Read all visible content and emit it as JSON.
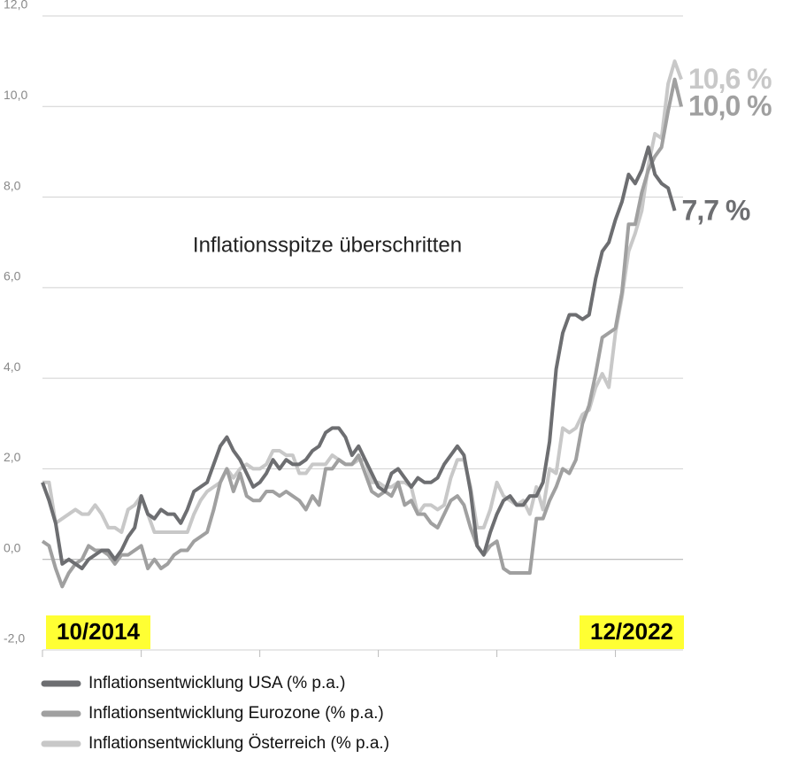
{
  "chart_data": {
    "type": "line",
    "annotation": "Inflationsspitze überschritten",
    "categories": [
      "10/2014",
      null,
      null,
      null,
      null,
      null,
      null,
      null,
      null,
      null,
      null,
      null,
      null,
      null,
      null,
      null,
      null,
      null,
      null,
      null,
      null,
      null,
      null,
      null,
      null,
      null,
      null,
      null,
      null,
      null,
      null,
      null,
      null,
      null,
      null,
      null,
      null,
      null,
      null,
      null,
      null,
      null,
      null,
      null,
      null,
      null,
      null,
      null,
      null,
      null,
      null,
      null,
      null,
      null,
      null,
      null,
      null,
      null,
      null,
      null,
      null,
      null,
      null,
      null,
      null,
      null,
      null,
      null,
      null,
      null,
      null,
      null,
      null,
      null,
      null,
      null,
      null,
      null,
      null,
      null,
      null,
      null,
      null,
      null,
      null,
      null,
      null,
      null,
      null,
      null,
      null,
      null,
      null,
      null,
      null,
      null,
      null,
      "12/2022"
    ],
    "series": [
      {
        "name": "Inflationsentwicklung USA (% p.a.)",
        "color": "#6d6e71",
        "values": [
          1.7,
          1.3,
          0.8,
          -0.1,
          0.0,
          -0.1,
          -0.2,
          0.0,
          0.1,
          0.2,
          0.2,
          0.0,
          0.2,
          0.5,
          0.7,
          1.4,
          1.0,
          0.9,
          1.1,
          1.0,
          1.0,
          0.8,
          1.1,
          1.5,
          1.6,
          1.7,
          2.1,
          2.5,
          2.7,
          2.4,
          2.2,
          1.9,
          1.6,
          1.7,
          1.9,
          2.2,
          2.0,
          2.2,
          2.1,
          2.1,
          2.2,
          2.4,
          2.5,
          2.8,
          2.9,
          2.9,
          2.7,
          2.3,
          2.5,
          2.2,
          1.9,
          1.6,
          1.5,
          1.9,
          2.0,
          1.8,
          1.6,
          1.8,
          1.7,
          1.7,
          1.8,
          2.1,
          2.3,
          2.5,
          2.3,
          1.5,
          0.3,
          0.1,
          0.6,
          1.0,
          1.3,
          1.4,
          1.2,
          1.2,
          1.4,
          1.4,
          1.7,
          2.6,
          4.2,
          5.0,
          5.4,
          5.4,
          5.3,
          5.4,
          6.2,
          6.8,
          7.0,
          7.5,
          7.9,
          8.5,
          8.3,
          8.6,
          9.1,
          8.5,
          8.3,
          8.2,
          7.7,
          null
        ],
        "value_labels": [
          null,
          null,
          null,
          null,
          null,
          null,
          null,
          null,
          null,
          null,
          null,
          null,
          null,
          null,
          null,
          null,
          null,
          null,
          null,
          null,
          null,
          null,
          null,
          null,
          null,
          null,
          null,
          null,
          null,
          null,
          null,
          null,
          null,
          null,
          null,
          null,
          null,
          null,
          null,
          null,
          null,
          null,
          null,
          null,
          null,
          null,
          null,
          null,
          null,
          null,
          null,
          null,
          null,
          null,
          null,
          null,
          null,
          null,
          null,
          null,
          null,
          null,
          null,
          null,
          null,
          null,
          null,
          null,
          null,
          null,
          null,
          null,
          null,
          null,
          null,
          null,
          null,
          null,
          null,
          null,
          null,
          null,
          null,
          null,
          null,
          null,
          null,
          null,
          null,
          null,
          null,
          null,
          null,
          null,
          null,
          null,
          "7,7 %",
          null
        ]
      },
      {
        "name": "Inflationsentwicklung Eurozone (% p.a.)",
        "color": "#a0a0a0",
        "values": [
          0.4,
          0.3,
          -0.2,
          -0.6,
          -0.3,
          -0.1,
          0.0,
          0.3,
          0.2,
          0.2,
          0.1,
          -0.1,
          0.1,
          0.1,
          0.2,
          0.3,
          -0.2,
          0.0,
          -0.2,
          -0.1,
          0.1,
          0.2,
          0.2,
          0.4,
          0.5,
          0.6,
          1.1,
          1.7,
          2.0,
          1.5,
          1.9,
          1.4,
          1.3,
          1.3,
          1.5,
          1.5,
          1.4,
          1.5,
          1.4,
          1.3,
          1.1,
          1.4,
          1.2,
          2.0,
          2.0,
          2.2,
          2.1,
          2.1,
          2.3,
          1.9,
          1.5,
          1.4,
          1.5,
          1.4,
          1.7,
          1.2,
          1.3,
          1.0,
          1.0,
          0.8,
          0.7,
          1.0,
          1.3,
          1.4,
          1.2,
          0.7,
          0.3,
          0.1,
          0.3,
          0.4,
          -0.2,
          -0.3,
          -0.3,
          -0.3,
          -0.3,
          0.9,
          0.9,
          1.3,
          1.6,
          2.0,
          1.9,
          2.2,
          3.0,
          3.4,
          4.1,
          4.9,
          5.0,
          5.1,
          5.9,
          7.4,
          7.4,
          8.1,
          8.6,
          8.9,
          9.1,
          9.9,
          10.6,
          10.0
        ],
        "value_labels": [
          null,
          null,
          null,
          null,
          null,
          null,
          null,
          null,
          null,
          null,
          null,
          null,
          null,
          null,
          null,
          null,
          null,
          null,
          null,
          null,
          null,
          null,
          null,
          null,
          null,
          null,
          null,
          null,
          null,
          null,
          null,
          null,
          null,
          null,
          null,
          null,
          null,
          null,
          null,
          null,
          null,
          null,
          null,
          null,
          null,
          null,
          null,
          null,
          null,
          null,
          null,
          null,
          null,
          null,
          null,
          null,
          null,
          null,
          null,
          null,
          null,
          null,
          null,
          null,
          null,
          null,
          null,
          null,
          null,
          null,
          null,
          null,
          null,
          null,
          null,
          null,
          null,
          null,
          null,
          null,
          null,
          null,
          null,
          null,
          null,
          null,
          null,
          null,
          null,
          null,
          null,
          null,
          null,
          null,
          null,
          null,
          null,
          "10,0 %"
        ]
      },
      {
        "name": "Inflationsentwicklung Österreich (% p.a.)",
        "color": "#c8c8c8",
        "values": [
          1.7,
          1.7,
          0.8,
          0.9,
          1.0,
          1.1,
          1.0,
          1.0,
          1.2,
          1.0,
          0.7,
          0.7,
          0.6,
          1.1,
          1.2,
          1.4,
          1.0,
          0.6,
          0.6,
          0.6,
          0.6,
          0.6,
          0.6,
          1.0,
          1.3,
          1.5,
          1.6,
          1.7,
          2.0,
          1.8,
          2.0,
          2.1,
          2.0,
          2.0,
          2.1,
          2.4,
          2.4,
          2.3,
          2.3,
          1.9,
          1.9,
          2.1,
          2.1,
          2.1,
          2.3,
          2.2,
          2.1,
          2.1,
          2.2,
          2.2,
          1.7,
          1.7,
          1.6,
          1.6,
          1.7,
          1.7,
          1.6,
          1.0,
          1.2,
          1.2,
          1.1,
          1.2,
          1.8,
          2.2,
          2.2,
          1.6,
          0.7,
          0.7,
          1.1,
          1.7,
          1.4,
          1.3,
          1.2,
          1.3,
          1.0,
          1.6,
          1.1,
          2.0,
          1.9,
          2.9,
          2.8,
          2.9,
          3.2,
          3.3,
          3.8,
          4.1,
          3.8,
          5.0,
          5.8,
          6.8,
          7.2,
          7.7,
          8.7,
          9.4,
          9.3,
          10.5,
          11.0,
          10.6
        ],
        "value_labels": [
          null,
          null,
          null,
          null,
          null,
          null,
          null,
          null,
          null,
          null,
          null,
          null,
          null,
          null,
          null,
          null,
          null,
          null,
          null,
          null,
          null,
          null,
          null,
          null,
          null,
          null,
          null,
          null,
          null,
          null,
          null,
          null,
          null,
          null,
          null,
          null,
          null,
          null,
          null,
          null,
          null,
          null,
          null,
          null,
          null,
          null,
          null,
          null,
          null,
          null,
          null,
          null,
          null,
          null,
          null,
          null,
          null,
          null,
          null,
          null,
          null,
          null,
          null,
          null,
          null,
          null,
          null,
          null,
          null,
          null,
          null,
          null,
          null,
          null,
          null,
          null,
          null,
          null,
          null,
          null,
          null,
          null,
          null,
          null,
          null,
          null,
          null,
          null,
          null,
          null,
          null,
          null,
          null,
          null,
          null,
          null,
          null,
          "10,6 %"
        ]
      }
    ],
    "ylim": [
      -2,
      12
    ],
    "yticks": [
      {
        "value": -2,
        "label": "-2,0"
      },
      {
        "value": 0,
        "label": "0,0"
      },
      {
        "value": 2,
        "label": "2,0"
      },
      {
        "value": 4,
        "label": "4,0"
      },
      {
        "value": 6,
        "label": "6,0"
      },
      {
        "value": 8,
        "label": "8,0"
      },
      {
        "value": 10,
        "label": "10,0"
      },
      {
        "value": 12,
        "label": "12,0"
      }
    ],
    "xticks": [
      0,
      15,
      33,
      51,
      69,
      87
    ],
    "grid": true
  }
}
